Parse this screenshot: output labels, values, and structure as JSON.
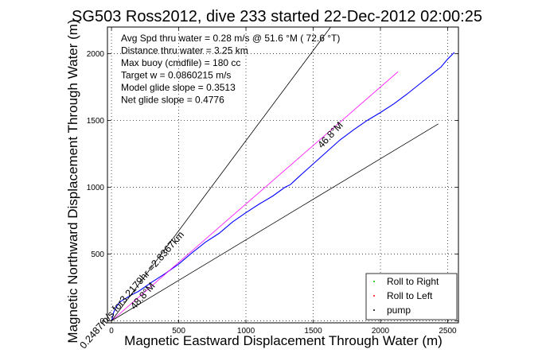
{
  "chart_data": {
    "type": "line",
    "title": "SG503 Ross2012, dive 233 started 22-Dec-2012 02:00:25",
    "xlabel": "Magnetic Eastward Displacement Through Water (m)",
    "ylabel": "Magnetic Northward Displacement Through Water (m)",
    "xlim": [
      -30,
      2580
    ],
    "ylim": [
      -15,
      2200
    ],
    "xticks": [
      0,
      500,
      1000,
      1500,
      2000,
      2500
    ],
    "yticks": [
      0,
      500,
      1000,
      1500,
      2000
    ],
    "grid": true,
    "legend_position": "bottom-right",
    "info_lines": [
      "Avg Spd thru water =  0.28 m/s @  51.6   °M ( 72.6 °T)",
      "Distance thru water =  3.25 km",
      "Max buoy (cmdfile) = 180 cc",
      "Target w = 0.0860215 m/s",
      "Model glide slope = 0.3513",
      "Net glide slope = 0.4776"
    ],
    "annotations": [
      {
        "text": "0.2487m/s for3.2179hr =2.8367km",
        "x": 170,
        "y": 215,
        "angle_deg": 48.8
      },
      {
        "text": "48.8°M",
        "x": 250,
        "y": 170,
        "angle_deg": 48.8
      },
      {
        "text": "46.8°M",
        "x": 1645,
        "y": 1375,
        "angle_deg": 46.8
      }
    ],
    "legend": [
      "Roll to Right",
      "Roll to Left",
      "pump"
    ],
    "series": [
      {
        "color": "#0000ff",
        "style": "solid",
        "x": [
          0,
          8,
          15,
          30,
          60,
          100,
          150,
          200,
          300,
          400,
          500,
          600,
          700,
          800,
          900,
          1000,
          1100,
          1200,
          1290,
          1330,
          1400,
          1500,
          1600,
          1700,
          1800,
          1900,
          2000,
          2100,
          2200,
          2300,
          2400,
          2450,
          2500,
          2550
        ],
        "y": [
          0,
          25,
          60,
          95,
          140,
          165,
          195,
          220,
          290,
          355,
          425,
          510,
          590,
          655,
          740,
          810,
          875,
          935,
          1000,
          1020,
          1085,
          1175,
          1265,
          1355,
          1430,
          1500,
          1560,
          1625,
          1700,
          1780,
          1860,
          1900,
          1960,
          2010
        ]
      },
      {
        "color": "#ff00ff",
        "style": "solid",
        "x": [
          0,
          2130
        ],
        "y": [
          0,
          1865
        ]
      },
      {
        "color": "#000000",
        "style": "solid",
        "x": [
          0,
          1630
        ],
        "y": [
          0,
          2200
        ]
      },
      {
        "color": "#000000",
        "style": "solid",
        "x": [
          0,
          2430
        ],
        "y": [
          0,
          1475
        ]
      }
    ]
  }
}
